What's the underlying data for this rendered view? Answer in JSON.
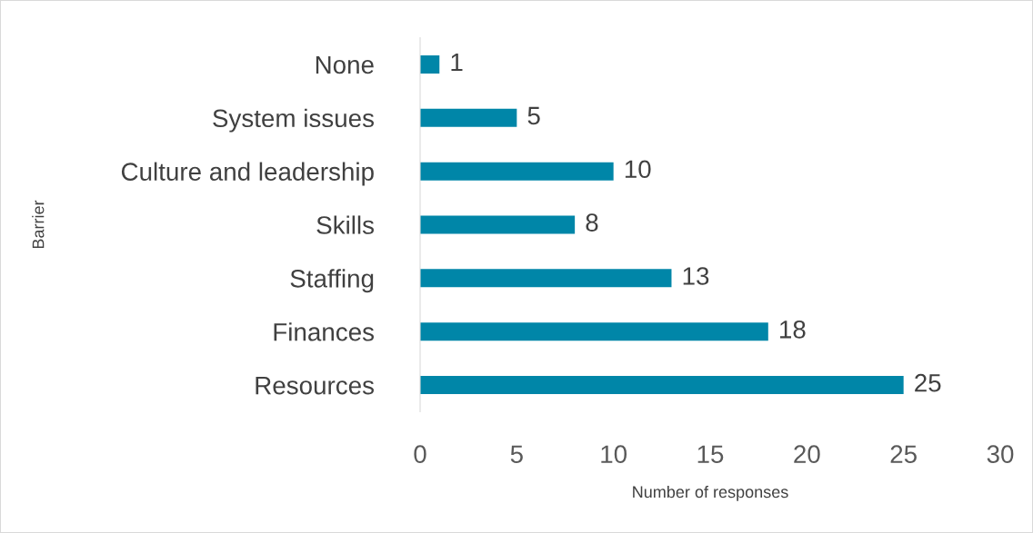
{
  "chart_data": {
    "type": "bar",
    "orientation": "horizontal",
    "categories": [
      "None",
      "System issues",
      "Culture and leadership",
      "Skills",
      "Staffing",
      "Finances",
      "Resources"
    ],
    "values": [
      1,
      5,
      10,
      8,
      13,
      18,
      25
    ],
    "color": "#0086a8",
    "xlim": [
      0,
      30
    ],
    "xticks": [
      0,
      5,
      10,
      15,
      20,
      25,
      30
    ],
    "xlabel": "Number of responses",
    "ylabel": "Barrier",
    "data_labels": true,
    "grid": false
  }
}
